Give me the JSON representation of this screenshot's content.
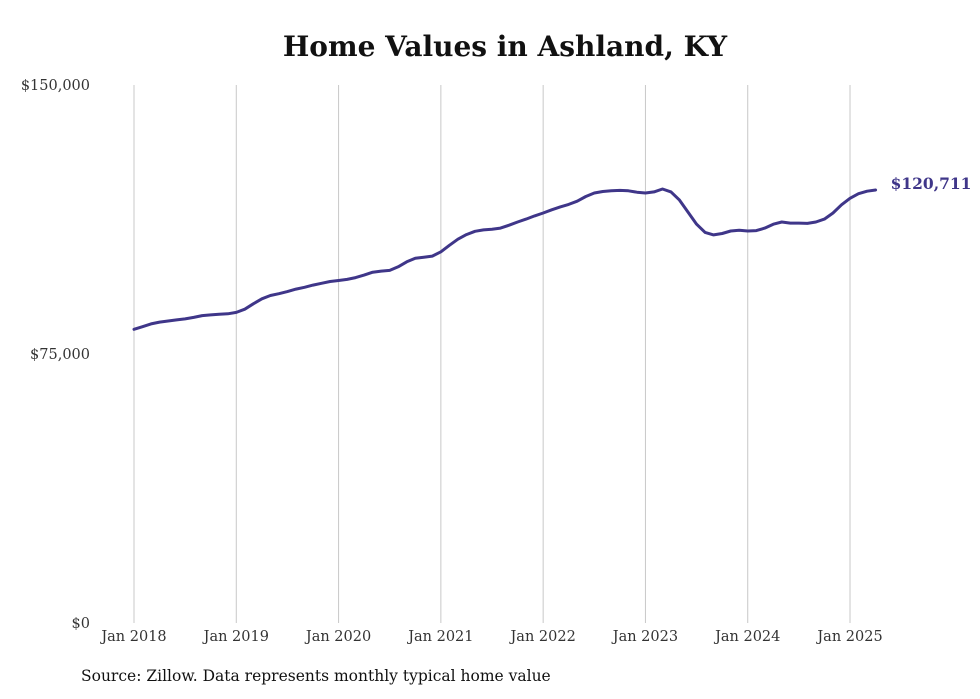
{
  "chart_data": {
    "type": "line",
    "title": "Home Values in Ashland, KY",
    "xlabel": "",
    "ylabel": "",
    "x_start": "2018-01",
    "x_tick_labels": [
      "Jan 2018",
      "Jan 2019",
      "Jan 2020",
      "Jan 2021",
      "Jan 2022",
      "Jan 2023",
      "Jan 2024",
      "Jan 2025"
    ],
    "y_tick_labels": [
      "$0",
      "$75,000",
      "$150,000"
    ],
    "y_ticks": [
      0,
      75000,
      150000
    ],
    "ylim": [
      0,
      150000
    ],
    "grid": "vertical",
    "series": [
      {
        "color": "#3f3689",
        "end_label": "$120,711",
        "values": [
          81900,
          82600,
          83400,
          83900,
          84200,
          84500,
          84800,
          85200,
          85700,
          85900,
          86100,
          86200,
          86600,
          87500,
          89000,
          90400,
          91300,
          91800,
          92400,
          93100,
          93600,
          94200,
          94700,
          95200,
          95500,
          95800,
          96300,
          97000,
          97800,
          98100,
          98300,
          99300,
          100700,
          101700,
          102000,
          102300,
          103500,
          105300,
          107000,
          108300,
          109200,
          109600,
          109800,
          110100,
          110900,
          111800,
          112600,
          113500,
          114300,
          115200,
          116000,
          116700,
          117600,
          118900,
          119900,
          120300,
          120500,
          120600,
          120500,
          120100,
          119900,
          120200,
          121000,
          120200,
          117900,
          114500,
          111200,
          108900,
          108200,
          108600,
          109300,
          109500,
          109300,
          109400,
          110100,
          111200,
          111800,
          111500,
          111500,
          111400,
          111800,
          112600,
          114300,
          116600,
          118400,
          119700,
          120400,
          120711
        ]
      }
    ]
  },
  "source_note": "Source: Zillow. Data represents monthly typical home value"
}
